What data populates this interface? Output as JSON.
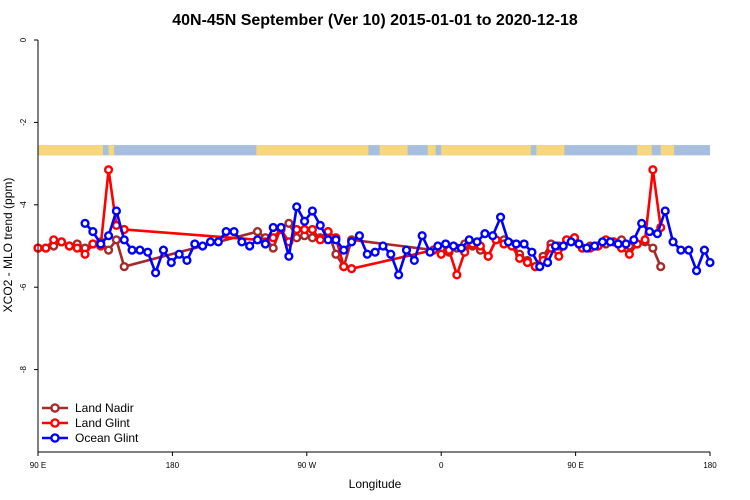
{
  "chart_data": {
    "type": "line",
    "title": "40N-45N September (Ver 10)   2015-01-01 to 2020-12-18",
    "xlabel": "Longitude",
    "ylabel": "XCO2 - MLO trend (ppm)",
    "xlim": [
      0,
      600
    ],
    "ylim": [
      -10,
      0
    ],
    "x_ticks": [
      {
        "value": 0,
        "label": "90 E"
      },
      {
        "value": 120,
        "label": "180"
      },
      {
        "value": 240,
        "label": "90 W"
      },
      {
        "value": 360,
        "label": "0"
      },
      {
        "value": 480,
        "label": "90 E"
      },
      {
        "value": 600,
        "label": "180"
      }
    ],
    "y_ticks": [
      {
        "value": 0,
        "label": "0"
      },
      {
        "value": -2,
        "label": "-2"
      },
      {
        "value": -4,
        "label": "-4"
      },
      {
        "value": -6,
        "label": "-6"
      },
      {
        "value": -8,
        "label": "-8"
      }
    ],
    "legend_position": "bottom-left",
    "land_ocean_band": {
      "y_range": [
        -2.55,
        -2.8
      ],
      "land_color": "#f7d77d",
      "ocean_color": "#a7bfdf",
      "land_segments": [
        [
          0,
          58
        ],
        [
          63,
          68
        ],
        [
          195,
          295
        ],
        [
          305,
          330
        ],
        [
          348,
          355
        ],
        [
          360,
          440
        ],
        [
          445,
          470
        ],
        [
          535,
          548
        ],
        [
          556,
          568
        ]
      ]
    },
    "series": [
      {
        "name": "Land Nadir",
        "color": "#a52a2a",
        "x": [
          0,
          7,
          14,
          21,
          28,
          35,
          42,
          49,
          56,
          63,
          70,
          77,
          196,
          203,
          210,
          217,
          224,
          231,
          238,
          245,
          252,
          259,
          266,
          273,
          280,
          353,
          360,
          367,
          374,
          381,
          388,
          395,
          402,
          409,
          416,
          423,
          430,
          437,
          444,
          451,
          458,
          465,
          472,
          479,
          486,
          493,
          500,
          507,
          514,
          521,
          528,
          535,
          542,
          549,
          556
        ],
        "y": [
          -5.05,
          -5.05,
          -5.0,
          -4.9,
          -5.0,
          -4.95,
          -5.05,
          -4.95,
          -4.9,
          -5.1,
          -4.85,
          -5.5,
          -4.65,
          -4.8,
          -5.05,
          -4.55,
          -4.45,
          -4.8,
          -4.75,
          -4.8,
          -4.8,
          -4.65,
          -5.2,
          -5.5,
          -4.85,
          -5.1,
          -5.05,
          -5.15,
          -5.05,
          -4.95,
          -5.0,
          -5.1,
          -5.25,
          -4.85,
          -4.85,
          -4.95,
          -5.2,
          -5.35,
          -5.5,
          -5.25,
          -4.95,
          -5.0,
          -4.85,
          -4.8,
          -5.05,
          -5.0,
          -5.0,
          -4.95,
          -4.9,
          -4.85,
          -5.0,
          -4.95,
          -4.9,
          -5.05,
          -5.5
        ],
        "y_step": []
      },
      {
        "name": "Land Glint",
        "color": "#ff0000",
        "x": [
          0,
          7,
          14,
          21,
          28,
          35,
          42,
          49,
          56,
          63,
          70,
          77,
          196,
          203,
          210,
          217,
          224,
          231,
          238,
          245,
          252,
          259,
          266,
          273,
          280,
          353,
          360,
          367,
          374,
          381,
          388,
          395,
          402,
          409,
          416,
          423,
          430,
          437,
          444,
          451,
          458,
          465,
          472,
          479,
          486,
          493,
          500,
          507,
          514,
          521,
          528,
          535,
          542,
          549,
          556
        ],
        "y": [
          -5.05,
          -5.05,
          -4.85,
          -4.9,
          -5.0,
          -5.05,
          -5.2,
          -4.95,
          -5.0,
          -3.15,
          -4.5,
          -4.6,
          -4.85,
          -4.9,
          -4.8,
          -4.6,
          -4.9,
          -4.6,
          -4.6,
          -4.6,
          -4.85,
          -4.65,
          -4.8,
          -5.5,
          -5.55,
          -5.1,
          -5.2,
          -5.1,
          -5.7,
          -5.15,
          -4.95,
          -5.0,
          -5.25,
          -4.85,
          -4.95,
          -5.0,
          -5.3,
          -5.4,
          -5.5,
          -5.35,
          -5.05,
          -5.25,
          -4.85,
          -4.8,
          -5.05,
          -5.05,
          -5.0,
          -4.85,
          -4.9,
          -5.05,
          -5.2,
          -4.95,
          -4.85,
          -3.15,
          -4.55
        ],
        "y_step": []
      },
      {
        "name": "Ocean Glint",
        "color": "#0000ff",
        "x": [
          42,
          49,
          56,
          63,
          70,
          77,
          84,
          91,
          98,
          105,
          112,
          119,
          126,
          133,
          140,
          147,
          154,
          161,
          168,
          175,
          182,
          189,
          196,
          203,
          210,
          217,
          224,
          231,
          238,
          245,
          252,
          259,
          266,
          273,
          280,
          287,
          294,
          301,
          308,
          315,
          322,
          329,
          336,
          343,
          350,
          357,
          364,
          371,
          378,
          385,
          392,
          399,
          406,
          413,
          420,
          427,
          434,
          441,
          448,
          455,
          462,
          469,
          476,
          483,
          490,
          497,
          504,
          511,
          518,
          525,
          532,
          539,
          546,
          553,
          560,
          567,
          574,
          581,
          588,
          595,
          600
        ],
        "y": [
          -4.45,
          -4.65,
          -4.95,
          -4.75,
          -4.15,
          -4.85,
          -5.1,
          -5.1,
          -5.15,
          -5.65,
          -5.1,
          -5.4,
          -5.2,
          -5.35,
          -4.95,
          -5.0,
          -4.9,
          -4.9,
          -4.65,
          -4.65,
          -4.9,
          -5.0,
          -4.85,
          -4.95,
          -4.55,
          -4.55,
          -5.25,
          -4.05,
          -4.4,
          -4.15,
          -4.5,
          -4.85,
          -4.85,
          -5.1,
          -4.9,
          -4.75,
          -5.2,
          -5.15,
          -5.0,
          -5.2,
          -5.7,
          -5.1,
          -5.35,
          -4.75,
          -5.15,
          -5.0,
          -4.95,
          -5.0,
          -5.05,
          -4.85,
          -4.9,
          -4.7,
          -4.75,
          -4.3,
          -4.9,
          -4.95,
          -4.95,
          -5.15,
          -5.5,
          -5.4,
          -5.0,
          -5.0,
          -4.9,
          -4.95,
          -5.05,
          -5.0,
          -4.9,
          -4.9,
          -4.95,
          -4.95,
          -4.85,
          -4.45,
          -4.65,
          -4.7,
          -4.15,
          -4.9,
          -5.1,
          -5.1,
          -5.6,
          -5.1,
          -5.4
        ],
        "y_step": []
      }
    ]
  }
}
